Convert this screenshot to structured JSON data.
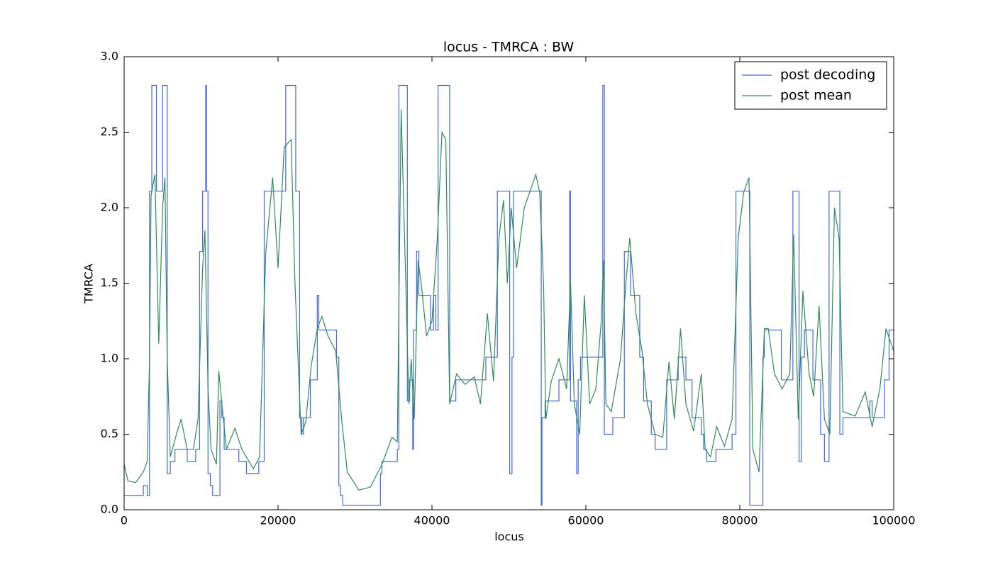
{
  "chart_data": {
    "type": "line",
    "title": "locus - TMRCA : BW",
    "xlabel": "locus",
    "ylabel": "TMRCA",
    "xlim": [
      0,
      100000
    ],
    "ylim": [
      0,
      3.0
    ],
    "xticks": [
      0,
      20000,
      40000,
      60000,
      80000,
      100000
    ],
    "yticks": [
      {
        "value": 0,
        "label": "0.0"
      },
      0.5,
      {
        "value": 1,
        "label": "1.0"
      },
      1.5,
      {
        "value": 2,
        "label": "2.0"
      },
      2.5,
      {
        "value": 3,
        "label": "3.0"
      }
    ],
    "grid": false,
    "legend": "upper right",
    "series": [
      {
        "name": "post decoding",
        "color": "#4169e1",
        "drawstyle": "steps-post",
        "x": [
          0,
          2500,
          3000,
          3300,
          3600,
          4200,
          5000,
          5600,
          6000,
          6600,
          8200,
          9300,
          9800,
          10200,
          10600,
          10700,
          10900,
          11200,
          11500,
          12450,
          12700,
          13000,
          14900,
          15900,
          17500,
          18200,
          21000,
          22300,
          22800,
          23100,
          23300,
          24200,
          25100,
          25300,
          27600,
          27900,
          28100,
          28400,
          33300,
          33500,
          35500,
          35700,
          36800,
          37100,
          37500,
          37600,
          38000,
          38300,
          39800,
          40200,
          40500,
          40800,
          42300,
          43100,
          47000,
          48500,
          50100,
          50400,
          50600,
          54200,
          54300,
          54700,
          56500,
          57900,
          58000,
          58800,
          59000,
          59300,
          62200,
          62400,
          63500,
          65000,
          65800,
          67000,
          67500,
          68500,
          69000,
          70500,
          72000,
          73000,
          73800,
          75000,
          75300,
          75700,
          76900,
          79000,
          79500,
          81300,
          83000,
          83200,
          85400,
          86900,
          87700,
          88000,
          88400,
          89500,
          90500,
          91000,
          91600,
          93000,
          93400,
          96900,
          97200,
          98800,
          99400,
          100000
        ],
        "values": [
          0.095,
          0.16,
          0.095,
          2.11,
          2.81,
          2.11,
          2.81,
          0.24,
          0.32,
          0.4,
          0.32,
          0.4,
          1.71,
          2.11,
          2.81,
          2.11,
          0.24,
          0.16,
          0.095,
          0.72,
          0.61,
          0.4,
          0.32,
          0.24,
          0.32,
          2.11,
          2.81,
          2.11,
          0.61,
          0.5,
          0.61,
          0.86,
          1.42,
          1.19,
          1.01,
          0.16,
          0.095,
          0.03,
          0.24,
          0.32,
          0.4,
          2.81,
          0.72,
          0.86,
          0.4,
          1.19,
          1.71,
          1.42,
          1.19,
          1.42,
          1.19,
          2.81,
          0.72,
          0.86,
          1.01,
          2.11,
          0.24,
          1.01,
          2.11,
          0.03,
          0.61,
          0.72,
          0.86,
          2.11,
          0.72,
          0.24,
          0.86,
          1.01,
          2.81,
          0.5,
          0.61,
          1.71,
          1.42,
          1.01,
          0.72,
          0.5,
          0.4,
          0.86,
          1.01,
          0.86,
          0.61,
          0.5,
          0.4,
          0.32,
          0.4,
          0.5,
          2.11,
          0.03,
          1.01,
          1.19,
          0.86,
          2.11,
          0.32,
          1.01,
          1.19,
          0.86,
          0.5,
          0.32,
          2.11,
          0.5,
          0.61,
          0.72,
          0.61,
          0.86,
          1.19,
          1.19
        ]
      },
      {
        "name": "post mean",
        "color": "#2e8b57",
        "drawstyle": "default",
        "x": [
          0,
          500,
          1500,
          2500,
          3000,
          3300,
          3500,
          4000,
          4500,
          5000,
          5300,
          5600,
          6000,
          6800,
          7400,
          8200,
          9000,
          9600,
          10200,
          10500,
          10900,
          11300,
          12000,
          12300,
          12700,
          13300,
          14400,
          15300,
          16800,
          17600,
          18400,
          19300,
          20000,
          20800,
          21700,
          22200,
          23000,
          23600,
          24300,
          25100,
          25700,
          26500,
          27500,
          28300,
          29000,
          30500,
          32000,
          33500,
          34800,
          35500,
          36000,
          36600,
          37000,
          37300,
          37700,
          38200,
          38600,
          39300,
          40000,
          40700,
          41300,
          41800,
          42300,
          43200,
          44300,
          45500,
          46300,
          47200,
          48000,
          48700,
          49300,
          49800,
          50300,
          51000,
          52000,
          53500,
          54000,
          54500,
          54800,
          55500,
          56500,
          57500,
          58000,
          58500,
          59200,
          59800,
          60500,
          61300,
          62000,
          62300,
          62600,
          63300,
          64500,
          65200,
          65700,
          66500,
          67300,
          68000,
          69000,
          70000,
          70800,
          71500,
          72300,
          73000,
          74000,
          75000,
          75500,
          76200,
          77000,
          78000,
          79000,
          79800,
          80500,
          81200,
          81700,
          82500,
          83200,
          83700,
          84500,
          85500,
          86500,
          87000,
          87600,
          88200,
          89000,
          89600,
          90300,
          91000,
          91700,
          92300,
          92900,
          93400,
          95000,
          96300,
          97200,
          98200,
          99000,
          100000
        ],
        "values": [
          0.3,
          0.19,
          0.18,
          0.25,
          0.32,
          1.0,
          2.08,
          2.22,
          1.1,
          2.0,
          2.2,
          1.0,
          0.35,
          0.5,
          0.6,
          0.4,
          0.4,
          0.6,
          1.6,
          1.85,
          0.8,
          0.4,
          0.3,
          0.92,
          0.7,
          0.4,
          0.54,
          0.4,
          0.27,
          0.35,
          1.7,
          2.2,
          1.6,
          2.4,
          2.45,
          1.5,
          0.5,
          0.58,
          0.95,
          1.2,
          1.28,
          1.15,
          1.05,
          0.58,
          0.25,
          0.13,
          0.15,
          0.3,
          0.48,
          0.45,
          2.65,
          1.5,
          0.7,
          1.0,
          0.6,
          1.65,
          1.5,
          1.15,
          1.25,
          1.8,
          2.5,
          2.45,
          0.7,
          0.9,
          0.83,
          0.88,
          0.7,
          1.3,
          0.85,
          1.8,
          2.05,
          1.5,
          2.0,
          1.6,
          2.0,
          2.22,
          2.1,
          1.5,
          0.6,
          0.85,
          1.0,
          0.8,
          1.52,
          0.7,
          0.5,
          1.42,
          0.7,
          0.8,
          1.25,
          1.65,
          0.7,
          0.65,
          1.0,
          1.5,
          1.8,
          1.3,
          1.05,
          0.7,
          0.5,
          0.48,
          0.98,
          0.6,
          1.2,
          0.7,
          0.52,
          0.9,
          0.4,
          0.35,
          0.55,
          0.42,
          0.6,
          1.8,
          2.1,
          2.2,
          0.4,
          0.25,
          1.2,
          1.2,
          0.9,
          0.8,
          0.9,
          1.82,
          0.6,
          1.45,
          0.9,
          0.75,
          1.35,
          0.6,
          0.5,
          2.0,
          1.8,
          0.65,
          0.62,
          0.78,
          0.55,
          0.8,
          1.2,
          1.05
        ]
      }
    ]
  }
}
